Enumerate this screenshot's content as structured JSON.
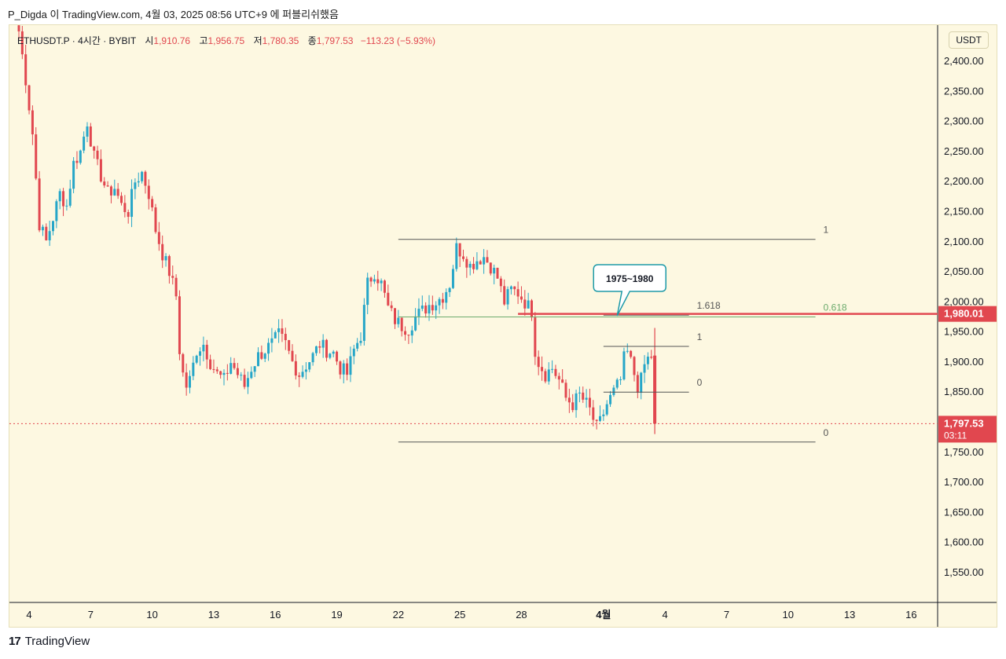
{
  "caption": "P_Digda 이 TradingView.com, 4월 03, 2025 08:56 UTC+9 에 퍼블리쉬했음",
  "legend": {
    "symbol": "ETHUSDT.P · 4시간 · BYBIT",
    "open_label": "시",
    "open": "1,910.76",
    "high_label": "고",
    "high": "1,956.75",
    "low_label": "저",
    "low": "1,780.35",
    "close_label": "종",
    "close": "1,797.53",
    "change": "−113.23 (−5.93%)"
  },
  "currency": "USDT",
  "footer": {
    "logo": "17",
    "brand": "TradingView"
  },
  "colors": {
    "up": "#26a6c8",
    "down": "#e1474f",
    "background": "#fdf8e1",
    "fib_green": "#6dab6d",
    "callout": "#1e9aa8"
  },
  "chart_data": {
    "type": "candlestick",
    "title": "ETHUSDT.P · 4시간 · BYBIT",
    "ylim": [
      1500,
      2450
    ],
    "y_ticks": [
      "2,400.00",
      "2,350.00",
      "2,300.00",
      "2,250.00",
      "2,200.00",
      "2,150.00",
      "2,100.00",
      "2,050.00",
      "2,000.00",
      "1,950.00",
      "1,900.00",
      "1,850.00",
      "1,800.00",
      "1,750.00",
      "1,700.00",
      "1,650.00",
      "1,600.00",
      "1,550.00"
    ],
    "y_tick_values": [
      2400,
      2350,
      2300,
      2250,
      2200,
      2150,
      2100,
      2050,
      2000,
      1950,
      1900,
      1850,
      1800,
      1750,
      1700,
      1650,
      1600,
      1550
    ],
    "x_ticks": [
      {
        "label": "4",
        "bar": 3
      },
      {
        "label": "7",
        "bar": 21
      },
      {
        "label": "10",
        "bar": 39
      },
      {
        "label": "13",
        "bar": 57
      },
      {
        "label": "16",
        "bar": 75
      },
      {
        "label": "19",
        "bar": 93
      },
      {
        "label": "22",
        "bar": 111
      },
      {
        "label": "25",
        "bar": 129
      },
      {
        "label": "28",
        "bar": 147
      },
      {
        "label": "4월",
        "bar": 171,
        "bold": true
      },
      {
        "label": "4",
        "bar": 189
      },
      {
        "label": "7",
        "bar": 207
      },
      {
        "label": "10",
        "bar": 225
      },
      {
        "label": "13",
        "bar": 243
      },
      {
        "label": "16",
        "bar": 261
      }
    ],
    "bar_range": [
      -4,
      270
    ],
    "anchors": [
      [
        0,
        2450
      ],
      [
        2,
        2370
      ],
      [
        4,
        2280
      ],
      [
        6,
        2130
      ],
      [
        8,
        2100
      ],
      [
        10,
        2140
      ],
      [
        12,
        2180
      ],
      [
        14,
        2160
      ],
      [
        16,
        2230
      ],
      [
        18,
        2250
      ],
      [
        20,
        2300
      ],
      [
        22,
        2240
      ],
      [
        24,
        2210
      ],
      [
        26,
        2180
      ],
      [
        28,
        2190
      ],
      [
        30,
        2160
      ],
      [
        32,
        2150
      ],
      [
        34,
        2200
      ],
      [
        36,
        2215
      ],
      [
        38,
        2180
      ],
      [
        40,
        2120
      ],
      [
        42,
        2080
      ],
      [
        44,
        2050
      ],
      [
        46,
        2010
      ],
      [
        47,
        1920
      ],
      [
        48,
        1880
      ],
      [
        49,
        1860
      ],
      [
        50,
        1870
      ],
      [
        52,
        1920
      ],
      [
        54,
        1930
      ],
      [
        56,
        1900
      ],
      [
        58,
        1880
      ],
      [
        60,
        1870
      ],
      [
        62,
        1900
      ],
      [
        64,
        1880
      ],
      [
        66,
        1860
      ],
      [
        68,
        1890
      ],
      [
        70,
        1910
      ],
      [
        72,
        1920
      ],
      [
        74,
        1930
      ],
      [
        76,
        1945
      ],
      [
        78,
        1930
      ],
      [
        80,
        1900
      ],
      [
        82,
        1880
      ],
      [
        84,
        1895
      ],
      [
        86,
        1910
      ],
      [
        88,
        1930
      ],
      [
        90,
        1920
      ],
      [
        92,
        1915
      ],
      [
        94,
        1890
      ],
      [
        96,
        1880
      ],
      [
        98,
        1920
      ],
      [
        100,
        1945
      ],
      [
        102,
        2030
      ],
      [
        104,
        2050
      ],
      [
        106,
        2030
      ],
      [
        108,
        1990
      ],
      [
        110,
        1970
      ],
      [
        112,
        1960
      ],
      [
        114,
        1955
      ],
      [
        116,
        1975
      ],
      [
        118,
        1985
      ],
      [
        120,
        1995
      ],
      [
        122,
        2000
      ],
      [
        124,
        2010
      ],
      [
        126,
        2030
      ],
      [
        128,
        2090
      ],
      [
        130,
        2080
      ],
      [
        132,
        2060
      ],
      [
        134,
        2070
      ],
      [
        136,
        2075
      ],
      [
        138,
        2060
      ],
      [
        140,
        2040
      ],
      [
        142,
        2000
      ],
      [
        144,
        2020
      ],
      [
        146,
        2015
      ],
      [
        148,
        2000
      ],
      [
        150,
        1985
      ],
      [
        151,
        1920
      ],
      [
        152,
        1900
      ],
      [
        154,
        1880
      ],
      [
        156,
        1890
      ],
      [
        158,
        1870
      ],
      [
        160,
        1840
      ],
      [
        162,
        1830
      ],
      [
        164,
        1845
      ],
      [
        166,
        1830
      ],
      [
        167,
        1820
      ],
      [
        168,
        1805
      ],
      [
        169,
        1790
      ],
      [
        170,
        1800
      ],
      [
        172,
        1830
      ],
      [
        174,
        1850
      ],
      [
        176,
        1870
      ],
      [
        177,
        1905
      ],
      [
        178,
        1915
      ],
      [
        179,
        1900
      ],
      [
        180,
        1880
      ],
      [
        181,
        1860
      ],
      [
        182,
        1870
      ],
      [
        183,
        1895
      ],
      [
        184,
        1905
      ],
      [
        185,
        1910
      ],
      [
        186,
        1797.53
      ]
    ],
    "last_bar": {
      "bar": 186,
      "open": 1910.76,
      "high": 1956.75,
      "low": 1780.35,
      "close": 1797.53
    },
    "price_labels": [
      {
        "value": 1980.01,
        "text": "1,980.01"
      },
      {
        "value": 1797.53,
        "text": "1,797.53",
        "sub": "03:11"
      }
    ],
    "horizontal_line": 1980.01,
    "last_price_line": 1797.53,
    "fib_large": {
      "x_start": 111,
      "x_end": 233,
      "levels": [
        {
          "label": "1",
          "value": 2104
        },
        {
          "label": "0.618",
          "value": 1975,
          "highlight": true
        },
        {
          "label": "0",
          "value": 1767
        }
      ]
    },
    "fib_small": {
      "x_start": 171,
      "x_end": 186,
      "levels": [
        {
          "label": "1",
          "value": 1926
        },
        {
          "label": "0",
          "value": 1850
        },
        {
          "label": "1.618",
          "value": 1978
        }
      ]
    },
    "callout": {
      "text": "1975~1980",
      "bar": 175,
      "value": 1977
    }
  }
}
